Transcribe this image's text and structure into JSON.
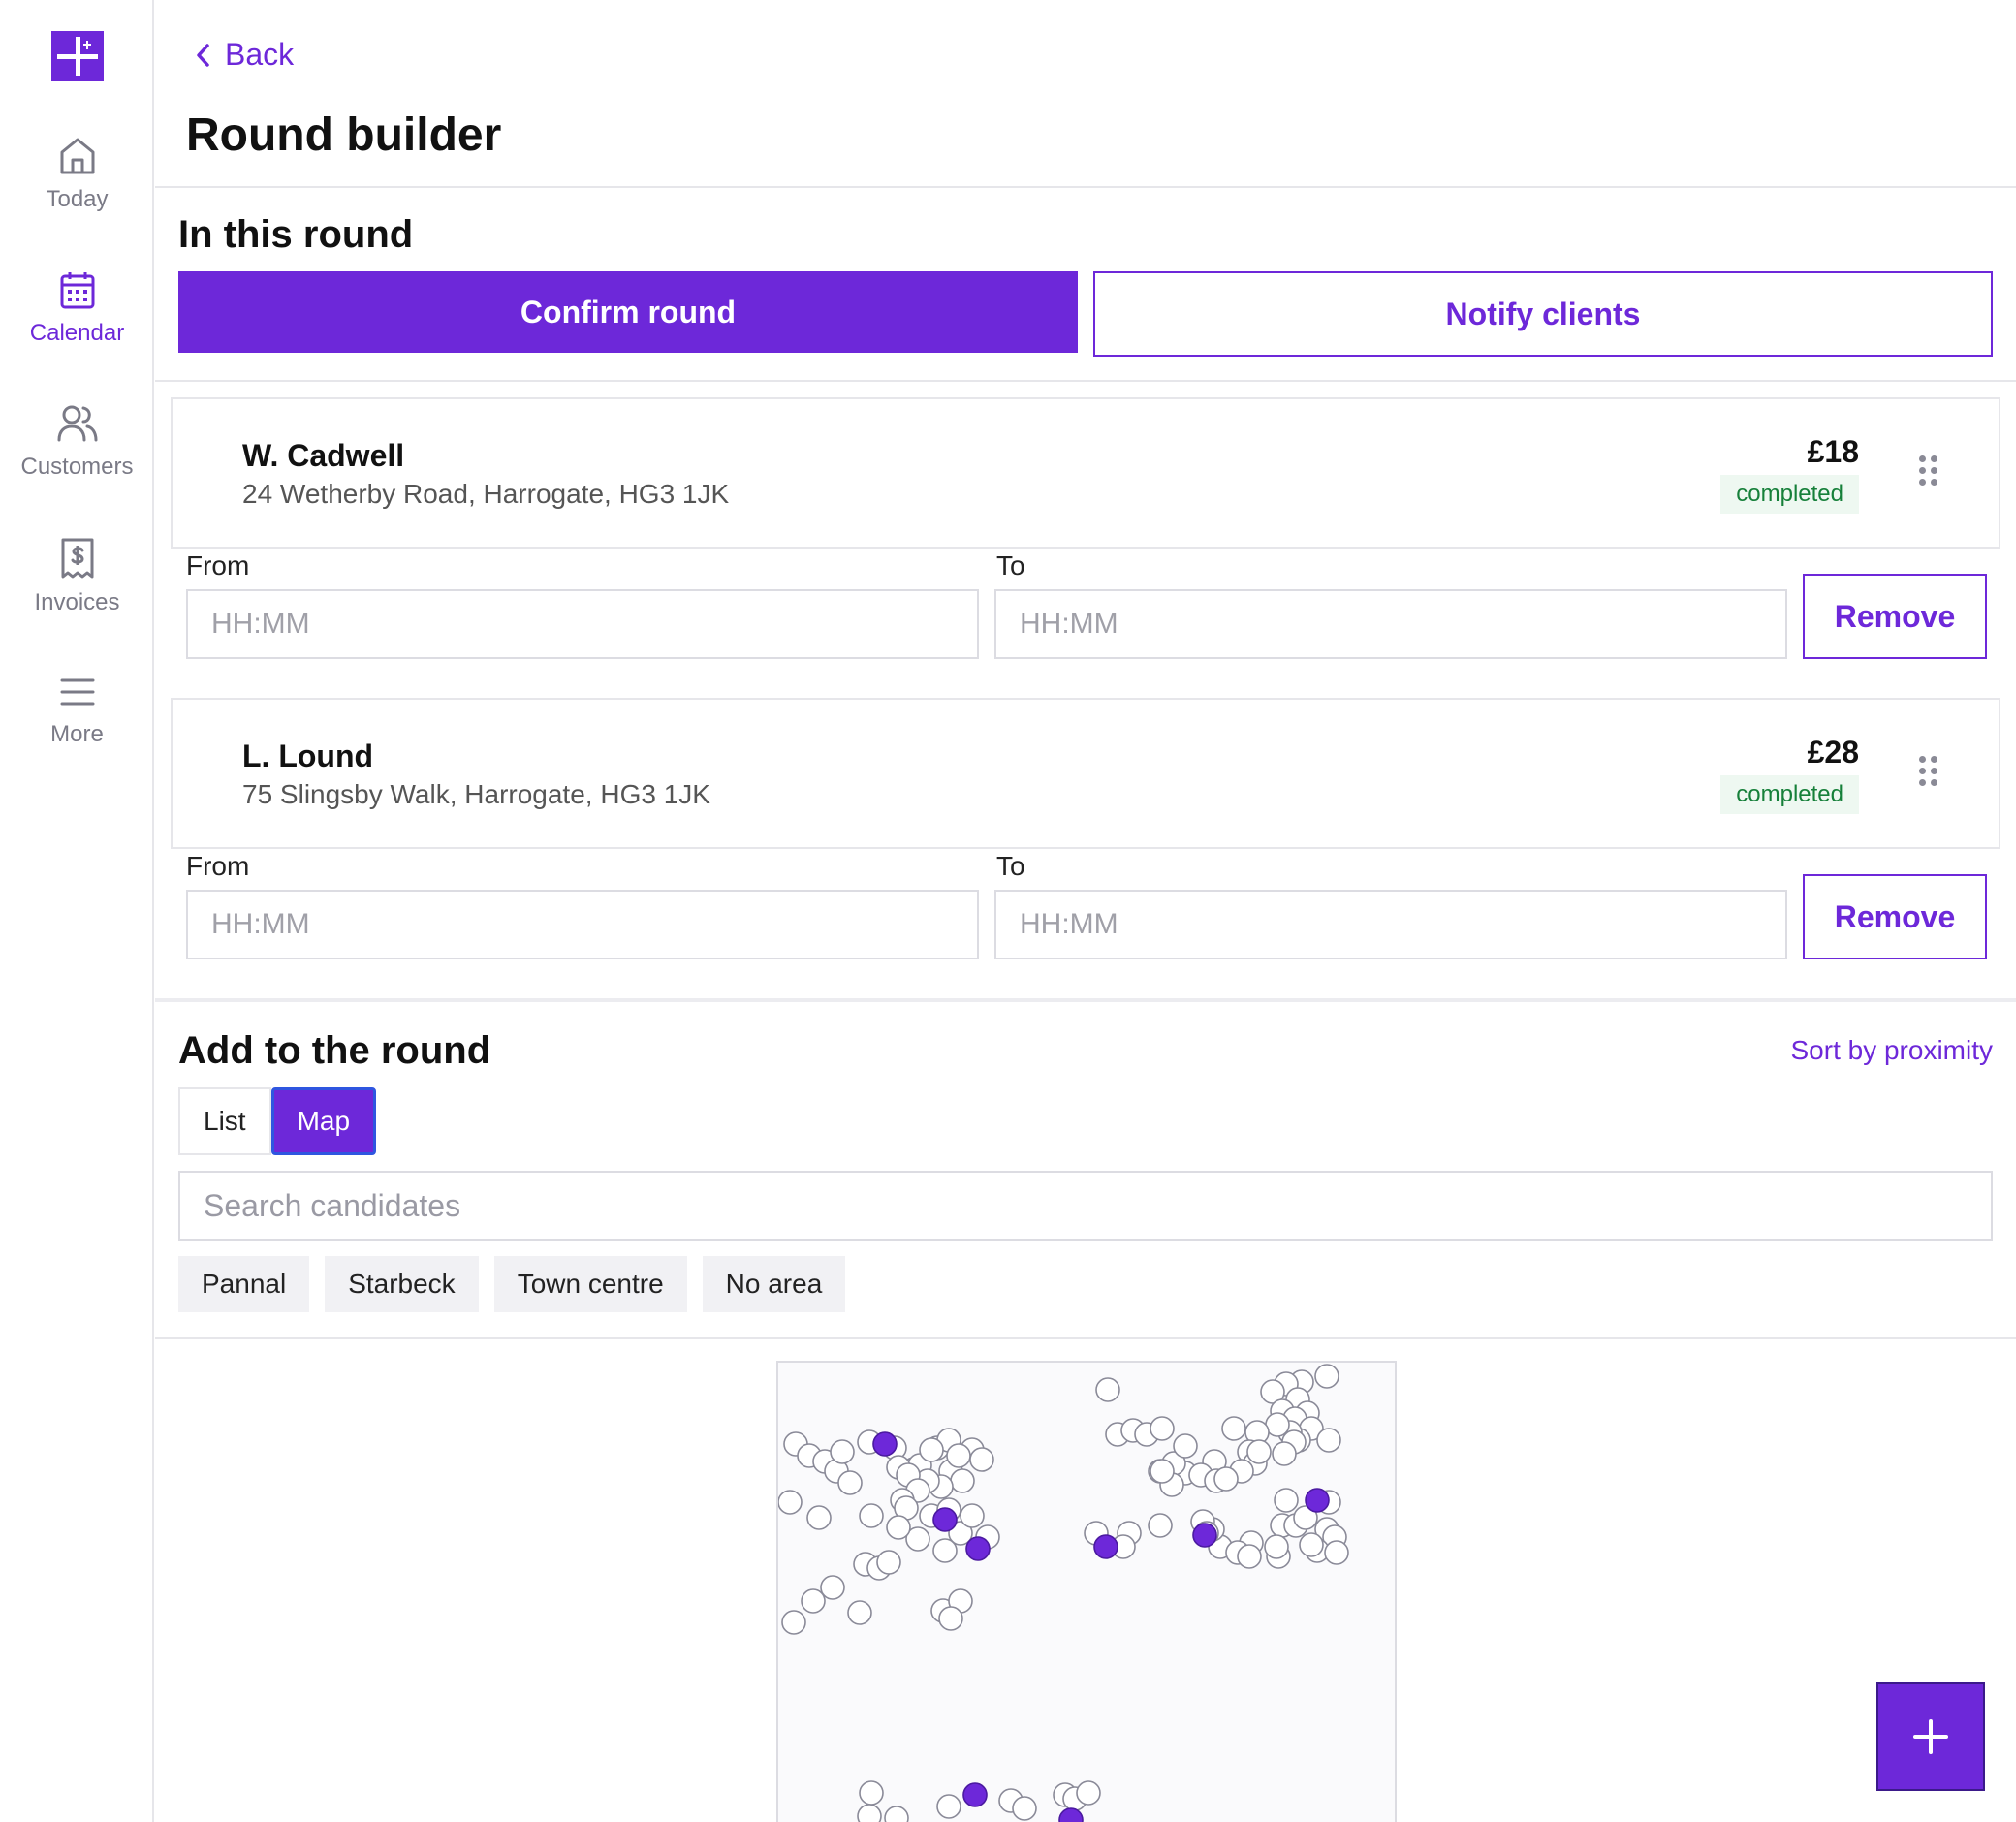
{
  "sidebar": {
    "items": [
      {
        "label": "Today",
        "icon": "home-icon",
        "active": false
      },
      {
        "label": "Calendar",
        "icon": "calendar-icon",
        "active": true
      },
      {
        "label": "Customers",
        "icon": "users-icon",
        "active": false
      },
      {
        "label": "Invoices",
        "icon": "invoice-icon",
        "active": false
      },
      {
        "label": "More",
        "icon": "menu-icon",
        "active": false
      }
    ]
  },
  "header": {
    "back_label": "Back",
    "title": "Round builder"
  },
  "round": {
    "title": "In this round",
    "confirm_label": "Confirm round",
    "notify_label": "Notify clients",
    "jobs": [
      {
        "name": "W. Cadwell",
        "address": "24 Wetherby Road, Harrogate, HG3 1JK",
        "price": "£18",
        "status": "completed",
        "from_label": "From",
        "to_label": "To",
        "from_placeholder": "HH:MM",
        "to_placeholder": "HH:MM",
        "remove_label": "Remove"
      },
      {
        "name": "L. Lound",
        "address": "75 Slingsby Walk, Harrogate, HG3 1JK",
        "price": "£28",
        "status": "completed",
        "from_label": "From",
        "to_label": "To",
        "from_placeholder": "HH:MM",
        "to_placeholder": "HH:MM",
        "remove_label": "Remove"
      }
    ]
  },
  "add": {
    "title": "Add to the round",
    "sort_label": "Sort by proximity",
    "view_options": [
      "List",
      "Map"
    ],
    "active_view": "Map",
    "search_placeholder": "Search candidates",
    "areas": [
      "Pannal",
      "Starbeck",
      "Town centre",
      "No area"
    ]
  },
  "colors": {
    "accent": "#6d28d9",
    "status_completed": "#16803a",
    "map_marker_selected": "#6d28d9",
    "map_marker_candidate": "#ffffff"
  },
  "fab": {
    "icon": "plus-icon"
  }
}
